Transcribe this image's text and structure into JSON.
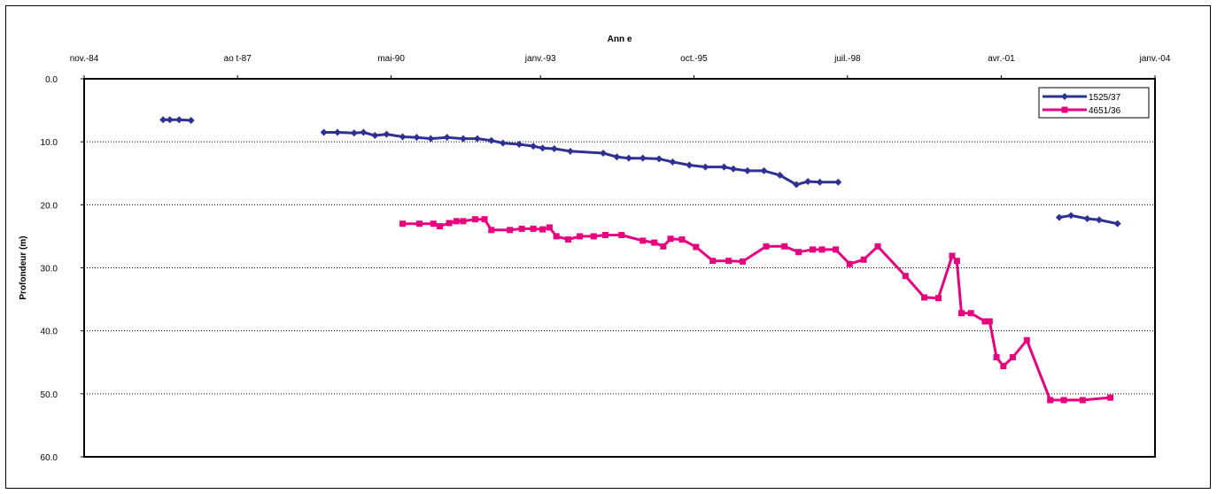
{
  "chart_data": {
    "type": "line",
    "xlabel": "Ann e",
    "ylabel": "Profondeur (m)",
    "x_axis_position": "top",
    "y_axis_reversed": true,
    "xlim": [
      "1984-11-01",
      "2004-01-01"
    ],
    "ylim": [
      0,
      60
    ],
    "x_tick_labels": [
      "nov.-84",
      "ao t-87",
      "mai-90",
      "janv.-93",
      "oct.-95",
      "juil.-98",
      "avr.-01",
      "janv.-04"
    ],
    "x_tick_dates": [
      "1984-11-01",
      "1987-08-01",
      "1990-05-01",
      "1993-01-01",
      "1995-10-01",
      "1998-07-01",
      "2001-04-01",
      "2004-01-01"
    ],
    "y_ticks": [
      0,
      10,
      20,
      30,
      40,
      50,
      60
    ],
    "y_tick_labels": [
      "0.0",
      "10.0",
      "20.0",
      "30.0",
      "40.0",
      "50.0",
      "60.0"
    ],
    "grid": "horizontal dotted",
    "legend_position": "top-right",
    "series": [
      {
        "name": "1525/37",
        "color": "#2e3192",
        "marker": "diamond",
        "points": [
          [
            "1986-04-01",
            6.5
          ],
          [
            "1986-05-15",
            6.5
          ],
          [
            "1986-07-15",
            6.5
          ],
          [
            "1986-10-01",
            6.6
          ]
        ],
        "points2": [
          [
            "1989-02-15",
            8.5
          ],
          [
            "1989-05-15",
            8.5
          ],
          [
            "1989-09-01",
            8.6
          ],
          [
            "1989-11-01",
            8.5
          ],
          [
            "1990-01-15",
            9.0
          ],
          [
            "1990-04-01",
            8.8
          ],
          [
            "1990-07-15",
            9.2
          ],
          [
            "1990-10-15",
            9.3
          ],
          [
            "1991-01-15",
            9.5
          ],
          [
            "1991-05-01",
            9.3
          ],
          [
            "1991-08-15",
            9.5
          ],
          [
            "1991-11-15",
            9.5
          ],
          [
            "1992-02-15",
            9.8
          ],
          [
            "1992-05-01",
            10.2
          ],
          [
            "1992-08-15",
            10.4
          ],
          [
            "1992-11-15",
            10.7
          ],
          [
            "1993-01-15",
            11.0
          ],
          [
            "1993-04-01",
            11.1
          ],
          [
            "1993-07-15",
            11.5
          ],
          [
            "1994-02-15",
            11.8
          ],
          [
            "1994-05-15",
            12.4
          ],
          [
            "1994-08-01",
            12.6
          ],
          [
            "1994-11-01",
            12.6
          ],
          [
            "1995-02-15",
            12.7
          ],
          [
            "1995-05-15",
            13.2
          ],
          [
            "1995-09-01",
            13.7
          ],
          [
            "1995-12-15",
            14.0
          ],
          [
            "1996-04-15",
            14.0
          ],
          [
            "1996-06-15",
            14.3
          ],
          [
            "1996-09-15",
            14.6
          ],
          [
            "1997-01-01",
            14.6
          ],
          [
            "1997-04-15",
            15.3
          ],
          [
            "1997-08-01",
            16.8
          ],
          [
            "1997-10-15",
            16.3
          ],
          [
            "1998-01-01",
            16.4
          ],
          [
            "1998-05-01",
            16.4
          ]
        ],
        "points3": [
          [
            "2002-04-15",
            22.0
          ],
          [
            "2002-07-01",
            21.7
          ],
          [
            "2002-10-15",
            22.2
          ],
          [
            "2003-01-01",
            22.4
          ],
          [
            "2003-05-01",
            23.0
          ]
        ]
      },
      {
        "name": "4651/36",
        "color": "#e6007e",
        "marker": "square",
        "points": [
          [
            "1990-07-15",
            23.0
          ],
          [
            "1990-11-01",
            23.0
          ],
          [
            "1991-02-01",
            23.0
          ],
          [
            "1991-03-15",
            23.4
          ],
          [
            "1991-05-15",
            22.9
          ],
          [
            "1991-07-01",
            22.6
          ],
          [
            "1991-08-15",
            22.6
          ],
          [
            "1991-11-01",
            22.3
          ],
          [
            "1992-01-01",
            22.3
          ],
          [
            "1992-02-15",
            24.0
          ],
          [
            "1992-06-15",
            24.0
          ],
          [
            "1992-09-01",
            23.8
          ],
          [
            "1992-11-15",
            23.8
          ],
          [
            "1993-01-15",
            23.9
          ],
          [
            "1993-03-01",
            23.6
          ],
          [
            "1993-04-15",
            25.0
          ],
          [
            "1993-07-01",
            25.5
          ],
          [
            "1993-09-15",
            25.0
          ],
          [
            "1993-12-15",
            25.0
          ],
          [
            "1994-03-01",
            24.8
          ],
          [
            "1994-06-15",
            24.8
          ],
          [
            "1994-11-01",
            25.7
          ],
          [
            "1995-01-15",
            26.0
          ],
          [
            "1995-03-15",
            26.6
          ],
          [
            "1995-05-01",
            25.4
          ],
          [
            "1995-07-15",
            25.5
          ],
          [
            "1995-10-15",
            26.7
          ],
          [
            "1996-02-01",
            28.9
          ],
          [
            "1996-05-15",
            28.9
          ],
          [
            "1996-08-15",
            29.0
          ],
          [
            "1997-01-15",
            26.6
          ],
          [
            "1997-05-15",
            26.6
          ],
          [
            "1997-08-15",
            27.5
          ],
          [
            "1997-11-15",
            27.1
          ],
          [
            "1998-01-15",
            27.1
          ],
          [
            "1998-04-15",
            27.1
          ],
          [
            "1998-07-15",
            29.4
          ],
          [
            "1998-10-15",
            28.7
          ],
          [
            "1999-01-15",
            26.6
          ],
          [
            "1999-07-15",
            31.3
          ],
          [
            "1999-11-15",
            34.7
          ],
          [
            "2000-02-15",
            34.8
          ],
          [
            "2000-05-15",
            28.1
          ],
          [
            "2000-06-15",
            28.9
          ],
          [
            "2000-07-15",
            37.2
          ],
          [
            "2000-09-15",
            37.2
          ],
          [
            "2000-12-15",
            38.5
          ],
          [
            "2001-01-15",
            38.5
          ],
          [
            "2001-03-01",
            44.2
          ],
          [
            "2001-04-15",
            45.6
          ],
          [
            "2001-06-15",
            44.2
          ],
          [
            "2001-09-15",
            41.5
          ],
          [
            "2002-02-15",
            51.0
          ],
          [
            "2002-05-15",
            51.0
          ],
          [
            "2002-09-15",
            51.0
          ],
          [
            "2003-03-15",
            50.6
          ]
        ]
      }
    ]
  }
}
